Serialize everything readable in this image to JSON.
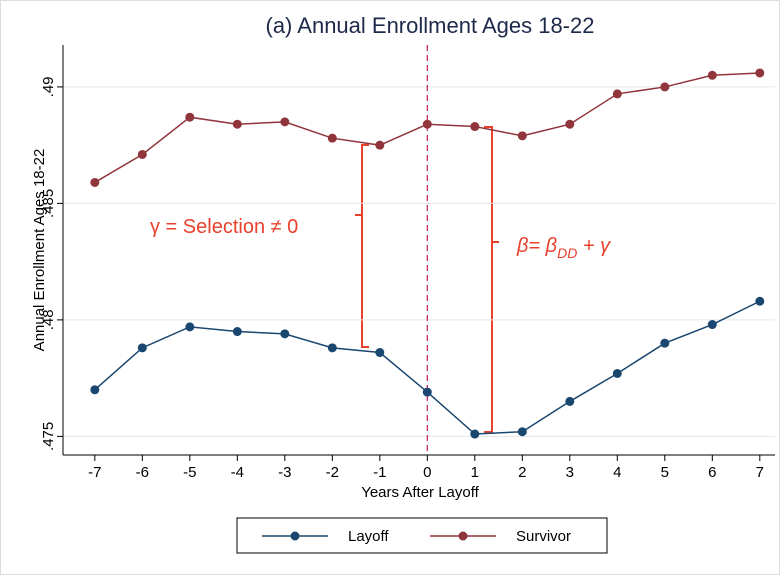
{
  "chart_data": {
    "type": "line",
    "title": "(a) Annual Enrollment Ages 18-22",
    "x_label": "Years After Layoff",
    "y_label": "Annual Enrollment Ages 18-22",
    "x": [
      -7,
      -6,
      -5,
      -4,
      -3,
      -2,
      -1,
      0,
      1,
      2,
      3,
      4,
      5,
      6,
      7
    ],
    "series": [
      {
        "name": "Layoff",
        "color": "#1a476f",
        "values": [
          0.477,
          0.4788,
          0.4797,
          0.4795,
          0.4794,
          0.4788,
          0.4786,
          0.4769,
          0.4751,
          0.4752,
          0.4765,
          0.4777,
          0.479,
          0.4798,
          0.4808
        ]
      },
      {
        "name": "Survivor",
        "color": "#90353b",
        "values": [
          0.4859,
          0.4871,
          0.4887,
          0.4884,
          0.4885,
          0.4878,
          0.4875,
          0.4884,
          0.4883,
          0.4879,
          0.4884,
          0.4897,
          0.49,
          0.4905,
          0.4906
        ]
      }
    ],
    "xlim": [
      -7.67,
      7.32
    ],
    "ylim": [
      0.4742,
      0.4918
    ],
    "xticks": [
      -7,
      -6,
      -5,
      -4,
      -3,
      -2,
      -1,
      0,
      1,
      2,
      3,
      4,
      5,
      6,
      7
    ],
    "yticks": [
      {
        "value": 0.475,
        "label": ".475"
      },
      {
        "value": 0.48,
        "label": ".48"
      },
      {
        "value": 0.485,
        "label": ".485"
      },
      {
        "value": 0.49,
        "label": ".49"
      }
    ],
    "grid": true,
    "reference_line_x": 0,
    "annotations": [
      {
        "text": "γ = Selection ≠ 0"
      },
      {
        "text": "β= β",
        "subscript": "DD",
        "tail": " + γ"
      }
    ],
    "legend": "bottom"
  }
}
